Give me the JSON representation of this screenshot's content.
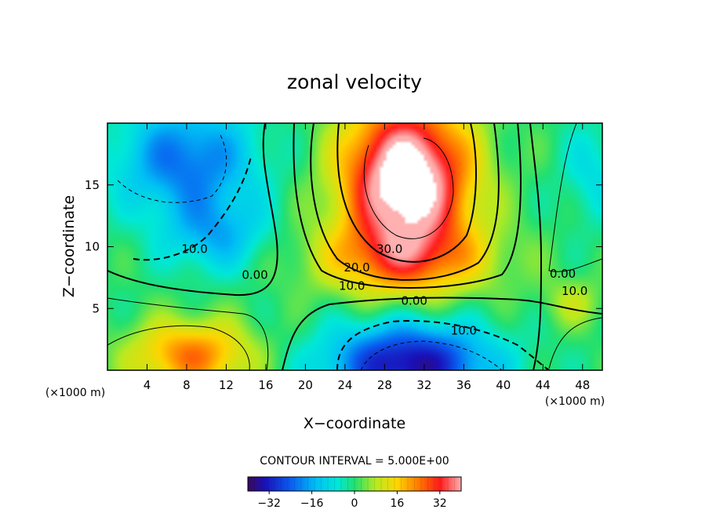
{
  "chart_data": {
    "type": "heatmap",
    "title": "zonal velocity",
    "xlabel": "X−coordinate",
    "ylabel": "Z−coordinate",
    "x_unit_left": "(×1000 m)",
    "x_unit_right": "(×1000 m)",
    "xlim": [
      0,
      50
    ],
    "ylim": [
      0,
      20
    ],
    "x_ticks": [
      4,
      8,
      12,
      16,
      20,
      24,
      28,
      32,
      36,
      40,
      44,
      48
    ],
    "y_ticks": [
      5,
      10,
      15
    ],
    "contour_interval_text": "CONTOUR INTERVAL = 5.000E+00",
    "colorbar": {
      "range": [
        -40,
        40
      ],
      "ticks": [
        -32,
        -16,
        0,
        16,
        32
      ],
      "tick_labels": [
        "−32",
        "−16",
        "0",
        "16",
        "32"
      ]
    },
    "contour_labels": [
      {
        "text": "10.0",
        "x": 8.8,
        "y": 9.5
      },
      {
        "text": "0.00",
        "x": 14.9,
        "y": 7.4
      },
      {
        "text": "30.0",
        "x": 28.5,
        "y": 9.5
      },
      {
        "text": "20.0",
        "x": 25.2,
        "y": 8.0
      },
      {
        "text": "10.0",
        "x": 24.7,
        "y": 6.5
      },
      {
        "text": "0.00",
        "x": 31.0,
        "y": 5.3
      },
      {
        "text": "10.0",
        "x": 36.0,
        "y": 2.9
      },
      {
        "text": "0.00",
        "x": 46.0,
        "y": 7.5
      },
      {
        "text": "10.0",
        "x": 47.2,
        "y": 6.1
      }
    ],
    "features": [
      {
        "name": "core jet max",
        "x": 30,
        "z": 15.5,
        "value": 45
      },
      {
        "name": "upper-left min",
        "x": 8,
        "z": 17,
        "value": -20
      },
      {
        "name": "lower-center min",
        "x": 30,
        "z": 1,
        "value": -34
      },
      {
        "name": "lower-left max",
        "x": 8,
        "z": 1.5,
        "value": 22
      }
    ],
    "grid": false,
    "legend": "colorbar-bottom"
  }
}
